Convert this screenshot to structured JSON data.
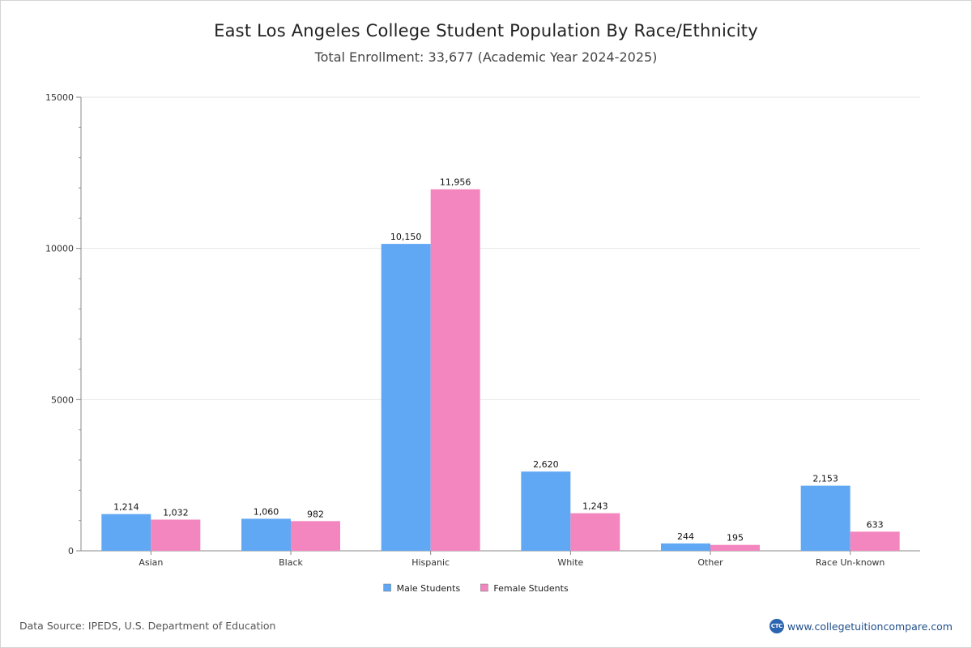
{
  "header": {
    "title": "East Los Angeles College Student Population By Race/Ethnicity",
    "subtitle": "Total Enrollment: 33,677 (Academic Year 2024-2025)"
  },
  "footer": {
    "source": "Data Source: IPEDS, U.S. Department of Education",
    "site": "www.collegetuitioncompare.com",
    "logo_text": "CTC"
  },
  "chart_data": {
    "type": "bar",
    "title": "East Los Angeles College Student Population By Race/Ethnicity",
    "subtitle": "Total Enrollment: 33,677 (Academic Year 2024-2025)",
    "categories": [
      "Asian",
      "Black",
      "Hispanic",
      "White",
      "Other",
      "Race Un-known"
    ],
    "series": [
      {
        "name": "Male Students",
        "color": "#61a8f4",
        "values": [
          1214,
          1060,
          10150,
          2620,
          244,
          2153
        ],
        "labels": [
          "1,214",
          "1,060",
          "10,150",
          "2,620",
          "244",
          "2,153"
        ]
      },
      {
        "name": "Female Students",
        "color": "#f386be",
        "values": [
          1032,
          982,
          11956,
          1243,
          195,
          633
        ],
        "labels": [
          "1,032",
          "982",
          "11,956",
          "1,243",
          "195",
          "633"
        ]
      }
    ],
    "ylim": [
      0,
      15000
    ],
    "yticks": [
      "0",
      "5000",
      "10000",
      "15000"
    ],
    "minor_tick_step": 1000,
    "grid": true,
    "legend_position": "bottom-center",
    "xlabel": "",
    "ylabel": ""
  }
}
